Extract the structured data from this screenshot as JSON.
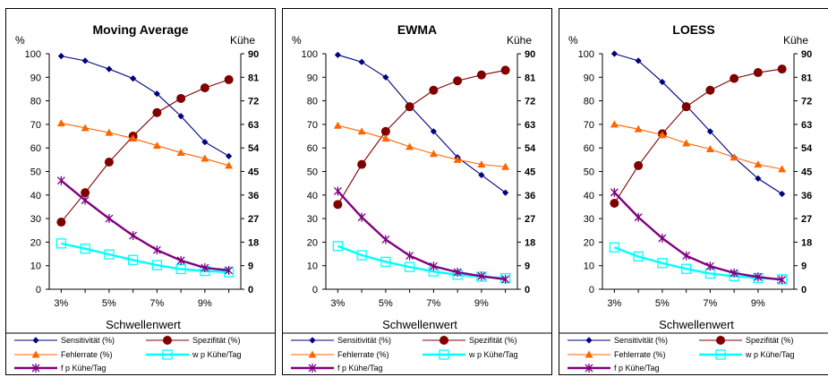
{
  "chart_data": [
    {
      "type": "line",
      "title": "Moving Average",
      "xlabel": "Schwellenwert",
      "ylabel": "%",
      "y2label": "Kühe",
      "x": [
        3,
        4,
        5,
        6,
        7,
        8,
        9,
        10
      ],
      "xticks": [
        "3%",
        "5%",
        "7%",
        "9%"
      ],
      "ylim": [
        0,
        100
      ],
      "y2lim": [
        0,
        90
      ],
      "yticks": [
        "0",
        "10",
        "20",
        "30",
        "40",
        "50",
        "60",
        "70",
        "80",
        "90",
        "100"
      ],
      "y2ticks": [
        "0",
        "9",
        "18",
        "27",
        "36",
        "45",
        "54",
        "63",
        "72",
        "81",
        "90"
      ],
      "series": [
        {
          "name": "Sensitivität (%)",
          "axis": "left",
          "color": "#000080",
          "marker": "diamond",
          "values": [
            99,
            97,
            93.5,
            89.5,
            83,
            73.5,
            62.5,
            56.5
          ]
        },
        {
          "name": "Spezifität (%)",
          "axis": "left",
          "color": "#800000",
          "marker": "circle",
          "values": [
            28.5,
            41,
            54,
            65,
            75,
            81,
            85.5,
            89
          ]
        },
        {
          "name": "Fehlerrate (%)",
          "axis": "left",
          "color": "#FF6600",
          "marker": "triangle",
          "values": [
            70.5,
            68.5,
            66.5,
            64,
            61,
            58,
            55.5,
            52.5
          ]
        },
        {
          "name": "w p Kühe/Tag",
          "axis": "right",
          "color": "#00FFFF",
          "marker": "square",
          "values": [
            17.5,
            15.5,
            13.3,
            11.2,
            9.2,
            7.7,
            7,
            6.5
          ]
        },
        {
          "name": "f p Kühe/Tag",
          "axis": "right",
          "color": "#800080",
          "marker": "x",
          "values": [
            41.5,
            34,
            27,
            20.5,
            15,
            11,
            8.2,
            7.2
          ]
        }
      ],
      "legend_position": "bottom",
      "grid": false
    },
    {
      "type": "line",
      "title": "EWMA",
      "xlabel": "Schwellenwert",
      "ylabel": "%",
      "y2label": "Kühe",
      "x": [
        3,
        4,
        5,
        6,
        7,
        8,
        9,
        10
      ],
      "xticks": [
        "3%",
        "5%",
        "7%",
        "9%"
      ],
      "ylim": [
        0,
        100
      ],
      "y2lim": [
        0,
        90
      ],
      "yticks": [
        "0",
        "10",
        "20",
        "30",
        "40",
        "50",
        "60",
        "70",
        "80",
        "90",
        "100"
      ],
      "y2ticks": [
        "0",
        "9",
        "18",
        "27",
        "36",
        "45",
        "54",
        "63",
        "72",
        "81",
        "90"
      ],
      "series": [
        {
          "name": "Sensitivität (%)",
          "axis": "left",
          "color": "#000080",
          "marker": "diamond",
          "values": [
            99.5,
            96.5,
            90,
            78,
            67,
            56,
            48.5,
            41
          ]
        },
        {
          "name": "Spezifität (%)",
          "axis": "left",
          "color": "#800000",
          "marker": "circle",
          "values": [
            36,
            53,
            67,
            77.5,
            84.5,
            88.5,
            91,
            93
          ]
        },
        {
          "name": "Fehlerrate (%)",
          "axis": "left",
          "color": "#FF6600",
          "marker": "triangle",
          "values": [
            69.5,
            67,
            64,
            60.5,
            57.5,
            55,
            53,
            52
          ]
        },
        {
          "name": "w p Kühe/Tag",
          "axis": "right",
          "color": "#00FFFF",
          "marker": "square",
          "values": [
            16.5,
            13,
            10.5,
            8.5,
            6.8,
            5.5,
            4.8,
            4.2
          ]
        },
        {
          "name": "f p Kühe/Tag",
          "axis": "right",
          "color": "#800080",
          "marker": "x",
          "values": [
            37.5,
            27.5,
            19,
            12.8,
            8.8,
            6.5,
            5,
            3.8
          ]
        }
      ],
      "legend_position": "bottom",
      "grid": false
    },
    {
      "type": "line",
      "title": "LOESS",
      "xlabel": "Schwellenwert",
      "ylabel": "%",
      "y2label": "Kühe",
      "x": [
        3,
        4,
        5,
        6,
        7,
        8,
        9,
        10
      ],
      "xticks": [
        "3%",
        "5%",
        "7%",
        "9%"
      ],
      "ylim": [
        0,
        100
      ],
      "y2lim": [
        0,
        90
      ],
      "yticks": [
        "0",
        "10",
        "20",
        "30",
        "40",
        "50",
        "60",
        "70",
        "80",
        "90",
        "100"
      ],
      "y2ticks": [
        "0",
        "9",
        "18",
        "27",
        "36",
        "45",
        "54",
        "63",
        "72",
        "81",
        "90"
      ],
      "series": [
        {
          "name": "Sensitivität (%)",
          "axis": "left",
          "color": "#000080",
          "marker": "diamond",
          "values": [
            100,
            97,
            88,
            78,
            67,
            56,
            47,
            40.5
          ]
        },
        {
          "name": "Spezifität (%)",
          "axis": "left",
          "color": "#800000",
          "marker": "circle",
          "values": [
            36.5,
            52.5,
            66,
            77.5,
            84.5,
            89.5,
            92,
            93.5
          ]
        },
        {
          "name": "Fehlerrate (%)",
          "axis": "left",
          "color": "#FF6600",
          "marker": "triangle",
          "values": [
            70,
            68,
            65.5,
            62,
            59.5,
            56,
            53,
            51
          ]
        },
        {
          "name": "w p Kühe/Tag",
          "axis": "right",
          "color": "#00FFFF",
          "marker": "square",
          "values": [
            16,
            12.5,
            10,
            7.8,
            6,
            5,
            4.3,
            3.8
          ]
        },
        {
          "name": "f p Kühe/Tag",
          "axis": "right",
          "color": "#800080",
          "marker": "x",
          "values": [
            37,
            27.5,
            19.5,
            12.8,
            8.8,
            6.2,
            4.7,
            3.6
          ]
        }
      ],
      "legend_position": "bottom",
      "grid": false
    }
  ]
}
